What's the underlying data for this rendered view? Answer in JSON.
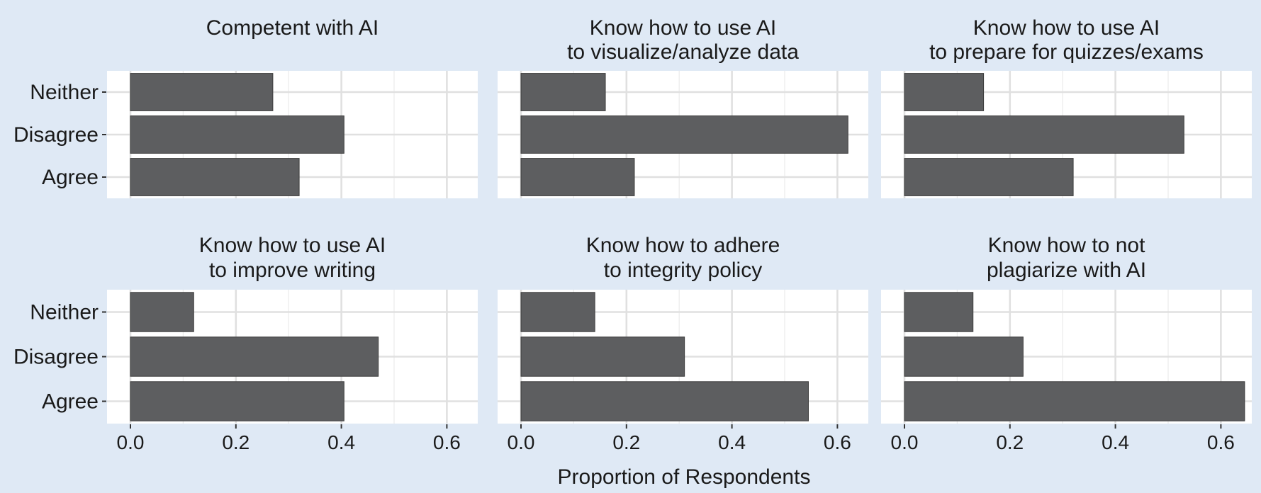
{
  "chart_data": {
    "type": "bar",
    "orientation": "horizontal",
    "facet_layout": "3 columns x 2 rows",
    "xlabel": "Proportion of Respondents",
    "ylabel": "",
    "xlim": [
      0,
      0.67
    ],
    "x_ticks": [
      0.0,
      0.2,
      0.4,
      0.6
    ],
    "x_tick_labels": [
      "0.0",
      "0.2",
      "0.4",
      "0.6"
    ],
    "categories": [
      "Neither",
      "Disagree",
      "Agree"
    ],
    "grid": true,
    "bar_color": "#5d5e60",
    "panel_background": "#ffffff",
    "figure_background": "#dfe9f5",
    "panels": [
      {
        "title": [
          "Competent with AI"
        ],
        "values": [
          0.27,
          0.405,
          0.32
        ]
      },
      {
        "title": [
          "Know how to use AI",
          "to visualize/analyze data"
        ],
        "values": [
          0.16,
          0.62,
          0.215
        ]
      },
      {
        "title": [
          "Know how to use AI",
          "to prepare for quizzes/exams"
        ],
        "values": [
          0.15,
          0.53,
          0.32
        ]
      },
      {
        "title": [
          "Know how to use AI",
          "to improve writing"
        ],
        "values": [
          0.12,
          0.47,
          0.405
        ]
      },
      {
        "title": [
          "Know how to adhere",
          "to integrity policy"
        ],
        "values": [
          0.14,
          0.31,
          0.545
        ]
      },
      {
        "title": [
          "Know how to not",
          "plagiarize with AI"
        ],
        "values": [
          0.13,
          0.225,
          0.645
        ]
      }
    ]
  }
}
